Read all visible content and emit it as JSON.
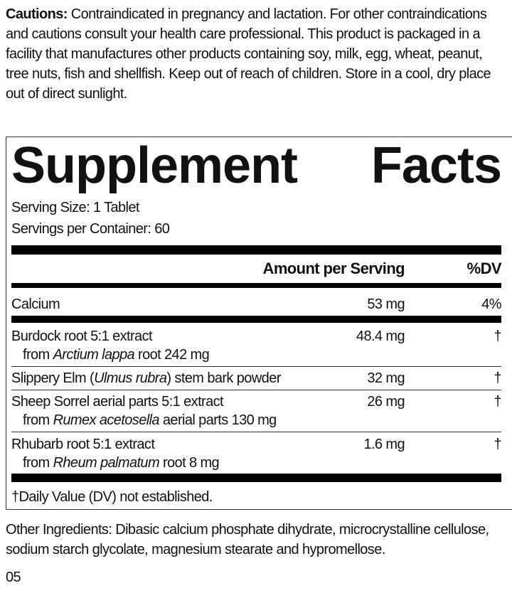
{
  "cautions": {
    "label": "Cautions:",
    "text": " Contraindicated in pregnancy and lactation. For other contraindications and cautions consult your health care professional. This product is packaged in a facility that manufactures other products containing soy, milk, egg, wheat, peanut, tree nuts, fish and shellfish. Keep out of reach of children. Store in a cool, dry place out of direct sunlight."
  },
  "facts": {
    "title_word1": "Supplement",
    "title_word2": "Facts",
    "serving_size": "Serving Size: 1 Tablet",
    "servings_per_container": "Servings per Container: 60",
    "header_amount": "Amount per Serving",
    "header_dv": "%DV",
    "rows": [
      {
        "name": "Calcium",
        "amount": "53 mg",
        "dv": "4%"
      },
      {
        "name": "Burdock root 5:1 extract",
        "sub_pre": "from ",
        "sub_italic": "Arctium lappa",
        "sub_post": " root 242 mg",
        "amount": "48.4 mg",
        "dv": "†"
      },
      {
        "name_pre": "Slippery Elm (",
        "name_italic": "Ulmus rubra",
        "name_post": ") stem bark powder",
        "amount": "32 mg",
        "dv": "†"
      },
      {
        "name": "Sheep Sorrel aerial parts 5:1 extract",
        "sub_pre": "from ",
        "sub_italic": "Rumex acetosella",
        "sub_post": " aerial parts 130 mg",
        "amount": "26 mg",
        "dv": "†"
      },
      {
        "name": "Rhubarb root 5:1 extract",
        "sub_pre": "from ",
        "sub_italic": "Rheum palmatum",
        "sub_post": " root 8 mg",
        "amount": "1.6 mg",
        "dv": "†"
      }
    ],
    "footnote": "†Daily Value (DV) not established."
  },
  "other_ingredients": "Other Ingredients: Dibasic calcium phosphate dihydrate, microcrystalline cellulose, sodium starch glycolate, magnesium stearate and hypromellose.",
  "code": "05"
}
